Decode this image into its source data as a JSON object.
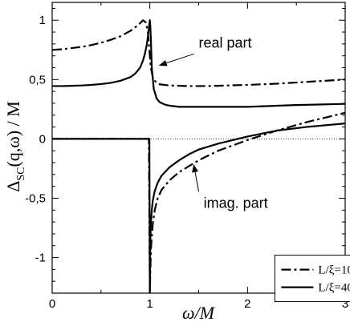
{
  "chart_data": {
    "type": "line",
    "title": "",
    "xlabel": "ω/M",
    "ylabel_main": "Δ",
    "ylabel_sub": "SC",
    "ylabel_rest": "(q,ω) / M",
    "xlim": [
      0,
      3
    ],
    "ylim": [
      -1.3,
      1.15
    ],
    "xticks": [
      0,
      1,
      2,
      3
    ],
    "xtick_labels": [
      "0",
      "1",
      "2",
      "3"
    ],
    "yticks": [
      -1,
      -0.5,
      0,
      0.5,
      1
    ],
    "ytick_labels": [
      "-1",
      "-0,5",
      "0",
      "0,5",
      "1"
    ],
    "grid": false,
    "zero_line": "dotted",
    "legend_position": "bottom-right",
    "series": [
      {
        "name": "L/ξ=10 (real part)",
        "legend_label": "L/ξ=10",
        "style": "dashdot",
        "x": [
          0,
          0.1,
          0.2,
          0.3,
          0.4,
          0.5,
          0.6,
          0.7,
          0.8,
          0.85,
          0.9,
          0.93,
          0.96,
          0.98,
          0.99,
          1.0,
          1.01,
          1.03,
          1.06,
          1.1,
          1.2,
          1.4,
          1.6,
          1.8,
          2.0,
          2.3,
          2.6,
          3.0
        ],
        "y": [
          0.75,
          0.755,
          0.765,
          0.775,
          0.79,
          0.81,
          0.835,
          0.865,
          0.91,
          0.94,
          0.975,
          1.0,
          0.98,
          0.9,
          0.8,
          0.7,
          0.6,
          0.52,
          0.48,
          0.46,
          0.45,
          0.445,
          0.445,
          0.45,
          0.455,
          0.465,
          0.48,
          0.5
        ]
      },
      {
        "name": "L/ξ=10 (imag. part)",
        "style": "dashdot",
        "x": [
          0,
          0.5,
          0.99,
          1.0,
          1.01,
          1.02,
          1.03,
          1.05,
          1.08,
          1.12,
          1.2,
          1.3,
          1.4,
          1.5,
          1.7,
          2.0,
          2.3,
          2.6,
          3.0
        ],
        "y": [
          0,
          0,
          0,
          -1.3,
          -0.95,
          -0.82,
          -0.72,
          -0.6,
          -0.5,
          -0.43,
          -0.35,
          -0.28,
          -0.23,
          -0.18,
          -0.1,
          -0.01,
          0.07,
          0.14,
          0.22
        ]
      },
      {
        "name": "L/ξ=40 (real part)",
        "legend_label": "L/ξ=40",
        "style": "solid",
        "x": [
          0,
          0.1,
          0.2,
          0.3,
          0.4,
          0.5,
          0.6,
          0.7,
          0.8,
          0.85,
          0.9,
          0.93,
          0.95,
          0.97,
          0.98,
          0.99,
          0.995,
          1.0,
          1.005,
          1.01,
          1.02,
          1.04,
          1.07,
          1.1,
          1.15,
          1.2,
          1.3,
          1.5,
          2.0,
          2.5,
          3.0
        ],
        "y": [
          0.445,
          0.445,
          0.447,
          0.45,
          0.455,
          0.462,
          0.472,
          0.49,
          0.52,
          0.55,
          0.6,
          0.66,
          0.72,
          0.8,
          0.86,
          0.93,
          0.97,
          1.0,
          0.95,
          0.85,
          0.6,
          0.42,
          0.34,
          0.31,
          0.29,
          0.28,
          0.27,
          0.27,
          0.27,
          0.285,
          0.295
        ]
      },
      {
        "name": "L/ξ=40 (imag. part)",
        "style": "solid",
        "x": [
          0,
          0.5,
          0.995,
          1.0,
          1.005,
          1.01,
          1.02,
          1.03,
          1.05,
          1.08,
          1.12,
          1.2,
          1.3,
          1.4,
          1.5,
          1.7,
          2.0,
          2.3,
          2.6,
          3.0
        ],
        "y": [
          0,
          0,
          0,
          -1.3,
          -0.85,
          -0.72,
          -0.6,
          -0.52,
          -0.44,
          -0.37,
          -0.31,
          -0.24,
          -0.18,
          -0.13,
          -0.09,
          -0.04,
          0.02,
          0.07,
          0.1,
          0.13
        ]
      }
    ],
    "annotations": [
      {
        "text": "real part",
        "x": 1.5,
        "y": 0.77,
        "arrow_to": [
          1.1,
          0.62
        ]
      },
      {
        "text": "imag. part",
        "x": 1.55,
        "y": -0.58,
        "arrow_to": [
          1.45,
          -0.22
        ]
      }
    ]
  }
}
